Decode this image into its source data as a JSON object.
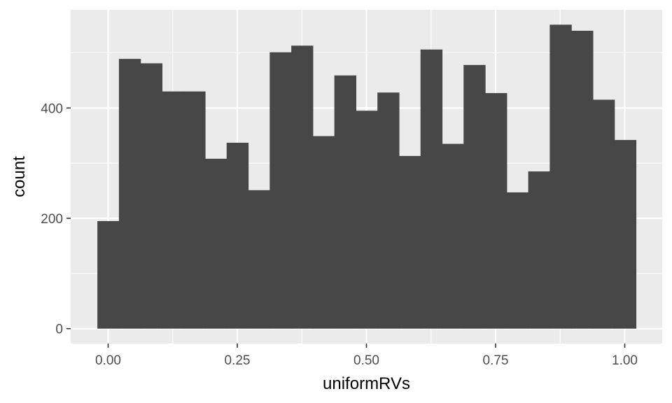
{
  "chart_data": {
    "type": "bar",
    "subtype": "histogram",
    "xlabel": "uniformRVs",
    "ylabel": "count",
    "bin_width": 0.0417,
    "x_first_bin_center": 0.0,
    "xlim": [
      -0.0725,
      1.0725
    ],
    "ylim": [
      -27,
      578
    ],
    "x_ticks": [
      {
        "value": 0.0,
        "label": "0.00"
      },
      {
        "value": 0.25,
        "label": "0.25"
      },
      {
        "value": 0.5,
        "label": "0.50"
      },
      {
        "value": 0.75,
        "label": "0.75"
      },
      {
        "value": 1.0,
        "label": "1.00"
      }
    ],
    "y_ticks": [
      {
        "value": 0,
        "label": "0"
      },
      {
        "value": 200,
        "label": "200"
      },
      {
        "value": 400,
        "label": "400"
      }
    ],
    "values": [
      195,
      489,
      481,
      430,
      430,
      308,
      337,
      251,
      501,
      513,
      349,
      459,
      395,
      428,
      313,
      506,
      335,
      478,
      427,
      247,
      285,
      551,
      540,
      415,
      342
    ],
    "grid": true,
    "legend": "none",
    "colors": {
      "panel": "#ebebeb",
      "grid_major": "#ffffff",
      "bar": "#474747",
      "tick_label": "#4d4d4d",
      "axis_title": "#000000"
    }
  }
}
